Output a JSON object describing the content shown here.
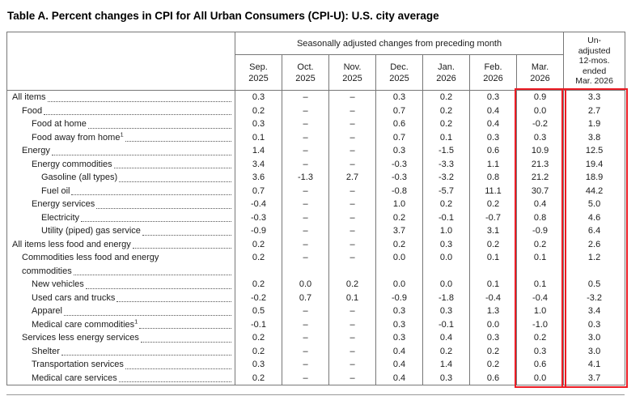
{
  "title": "Table A. Percent changes in CPI for All Urban Consumers (CPI-U): U.S. city average",
  "colors": {
    "highlight": "#ec1c24",
    "grid": "#777777",
    "text": "#1b1b1b"
  },
  "table": {
    "group_header": "Seasonally adjusted changes from preceding month",
    "unadjusted_lines": [
      "Un-",
      "adjusted",
      "12-mos.",
      "ended",
      "Mar. 2026"
    ],
    "month_columns": [
      {
        "month": "Sep.",
        "year": "2025"
      },
      {
        "month": "Oct.",
        "year": "2025"
      },
      {
        "month": "Nov.",
        "year": "2025"
      },
      {
        "month": "Dec.",
        "year": "2025"
      },
      {
        "month": "Jan.",
        "year": "2026"
      },
      {
        "month": "Feb.",
        "year": "2026"
      },
      {
        "month": "Mar.",
        "year": "2026"
      }
    ],
    "rows": [
      {
        "label": "All items",
        "indent": 0,
        "values": [
          "0.3",
          "–",
          "–",
          "0.3",
          "0.2",
          "0.3",
          "0.9"
        ],
        "unadjusted": "3.3"
      },
      {
        "label": "Food",
        "indent": 1,
        "values": [
          "0.2",
          "–",
          "–",
          "0.7",
          "0.2",
          "0.4",
          "0.0"
        ],
        "unadjusted": "2.7"
      },
      {
        "label": "Food at home",
        "indent": 2,
        "values": [
          "0.3",
          "–",
          "–",
          "0.6",
          "0.2",
          "0.4",
          "-0.2"
        ],
        "unadjusted": "1.9"
      },
      {
        "label": "Food away from home",
        "sup": "1",
        "indent": 2,
        "values": [
          "0.1",
          "–",
          "–",
          "0.7",
          "0.1",
          "0.3",
          "0.3"
        ],
        "unadjusted": "3.8"
      },
      {
        "label": "Energy",
        "indent": 1,
        "values": [
          "1.4",
          "–",
          "–",
          "0.3",
          "-1.5",
          "0.6",
          "10.9"
        ],
        "unadjusted": "12.5"
      },
      {
        "label": "Energy commodities",
        "indent": 2,
        "values": [
          "3.4",
          "–",
          "–",
          "-0.3",
          "-3.3",
          "1.1",
          "21.3"
        ],
        "unadjusted": "19.4"
      },
      {
        "label": "Gasoline (all types)",
        "indent": 3,
        "values": [
          "3.6",
          "-1.3",
          "2.7",
          "-0.3",
          "-3.2",
          "0.8",
          "21.2"
        ],
        "unadjusted": "18.9"
      },
      {
        "label": "Fuel oil",
        "indent": 3,
        "values": [
          "0.7",
          "–",
          "–",
          "-0.8",
          "-5.7",
          "11.1",
          "30.7"
        ],
        "unadjusted": "44.2"
      },
      {
        "label": "Energy services",
        "indent": 2,
        "values": [
          "-0.4",
          "–",
          "–",
          "1.0",
          "0.2",
          "0.2",
          "0.4"
        ],
        "unadjusted": "5.0"
      },
      {
        "label": "Electricity",
        "indent": 3,
        "values": [
          "-0.3",
          "–",
          "–",
          "0.2",
          "-0.1",
          "-0.7",
          "0.8"
        ],
        "unadjusted": "4.6"
      },
      {
        "label": "Utility (piped) gas service",
        "indent": 3,
        "values": [
          "-0.9",
          "–",
          "–",
          "3.7",
          "1.0",
          "3.1",
          "-0.9"
        ],
        "unadjusted": "6.4"
      },
      {
        "label": "All items less food and energy",
        "indent": 0,
        "values": [
          "0.2",
          "–",
          "–",
          "0.2",
          "0.3",
          "0.2",
          "0.2"
        ],
        "unadjusted": "2.6"
      },
      {
        "label": "Commodities less food and energy",
        "label2": "commodities",
        "indent": 1,
        "values": [
          "0.2",
          "–",
          "–",
          "0.0",
          "0.0",
          "0.1",
          "0.1"
        ],
        "unadjusted": "1.2"
      },
      {
        "label": "New vehicles",
        "indent": 2,
        "values": [
          "0.2",
          "0.0",
          "0.2",
          "0.0",
          "0.0",
          "0.1",
          "0.1"
        ],
        "unadjusted": "0.5"
      },
      {
        "label": "Used cars and trucks",
        "indent": 2,
        "values": [
          "-0.2",
          "0.7",
          "0.1",
          "-0.9",
          "-1.8",
          "-0.4",
          "-0.4"
        ],
        "unadjusted": "-3.2"
      },
      {
        "label": "Apparel",
        "indent": 2,
        "values": [
          "0.5",
          "–",
          "–",
          "0.3",
          "0.3",
          "1.3",
          "1.0"
        ],
        "unadjusted": "3.4"
      },
      {
        "label": "Medical care commodities",
        "sup": "1",
        "indent": 2,
        "values": [
          "-0.1",
          "–",
          "–",
          "0.3",
          "-0.1",
          "0.0",
          "-1.0"
        ],
        "unadjusted": "0.3"
      },
      {
        "label": "Services less energy services",
        "indent": 1,
        "values": [
          "0.2",
          "–",
          "–",
          "0.3",
          "0.4",
          "0.3",
          "0.2"
        ],
        "unadjusted": "3.0"
      },
      {
        "label": "Shelter",
        "indent": 2,
        "values": [
          "0.2",
          "–",
          "–",
          "0.4",
          "0.2",
          "0.2",
          "0.3"
        ],
        "unadjusted": "3.0"
      },
      {
        "label": "Transportation services",
        "indent": 2,
        "values": [
          "0.3",
          "–",
          "–",
          "0.4",
          "1.4",
          "0.2",
          "0.6"
        ],
        "unadjusted": "4.1"
      },
      {
        "label": "Medical care services",
        "indent": 2,
        "values": [
          "0.2",
          "–",
          "–",
          "0.4",
          "0.3",
          "0.6",
          "0.0"
        ],
        "unadjusted": "3.7"
      }
    ]
  }
}
